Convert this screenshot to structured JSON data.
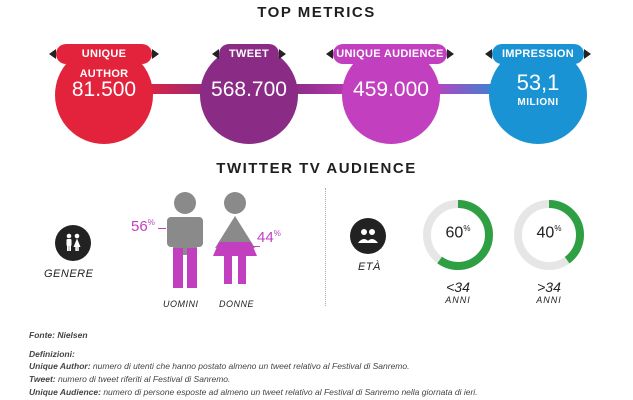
{
  "top_metrics": {
    "title": "TOP METRICS",
    "items": [
      {
        "label": "UNIQUE AUTHOR",
        "value": "81.500",
        "color": "#e3233c"
      },
      {
        "label": "TWEET",
        "value": "568.700",
        "color": "#8a2b86"
      },
      {
        "label": "UNIQUE AUDIENCE",
        "value": "459.000",
        "color": "#c23fbf"
      },
      {
        "label": "IMPRESSION",
        "value": "53,1",
        "sub": "MILIONI",
        "color": "#1a93d4"
      }
    ]
  },
  "audience": {
    "title": "TWITTER TV AUDIENCE",
    "gender": {
      "caption": "GENERE",
      "icon": "gender-people-icon",
      "male": {
        "percent": "56",
        "unit": "%",
        "label": "UOMINI",
        "value": 56
      },
      "female": {
        "percent": "44",
        "unit": "%",
        "label": "DONNE",
        "value": 44
      },
      "highlight_color": "#c23fbf",
      "figure_color": "#8a8a8a"
    },
    "age": {
      "caption": "ETÀ",
      "icon": "group-people-icon",
      "groups": [
        {
          "percent": "60",
          "unit": "%",
          "value": 60,
          "label": "<34",
          "sub": "ANNI"
        },
        {
          "percent": "40",
          "unit": "%",
          "value": 40,
          "label": ">34",
          "sub": "ANNI"
        }
      ],
      "ring_color": "#2ea043"
    }
  },
  "footer": {
    "source": "Fonte: Nielsen",
    "definitions_title": "Definizioni:",
    "definitions": [
      {
        "term": "Unique Author:",
        "text": " numero di utenti che hanno postato almeno un tweet relativo al Festival di Sanremo."
      },
      {
        "term": "Tweet:",
        "text": " numero di tweet riferiti al Festival di Sanremo."
      },
      {
        "term": "Unique Audience:",
        "text": " numero di persone esposte ad almeno un tweet relativo al Festival di Sanremo nella giornata di ieri."
      }
    ]
  }
}
